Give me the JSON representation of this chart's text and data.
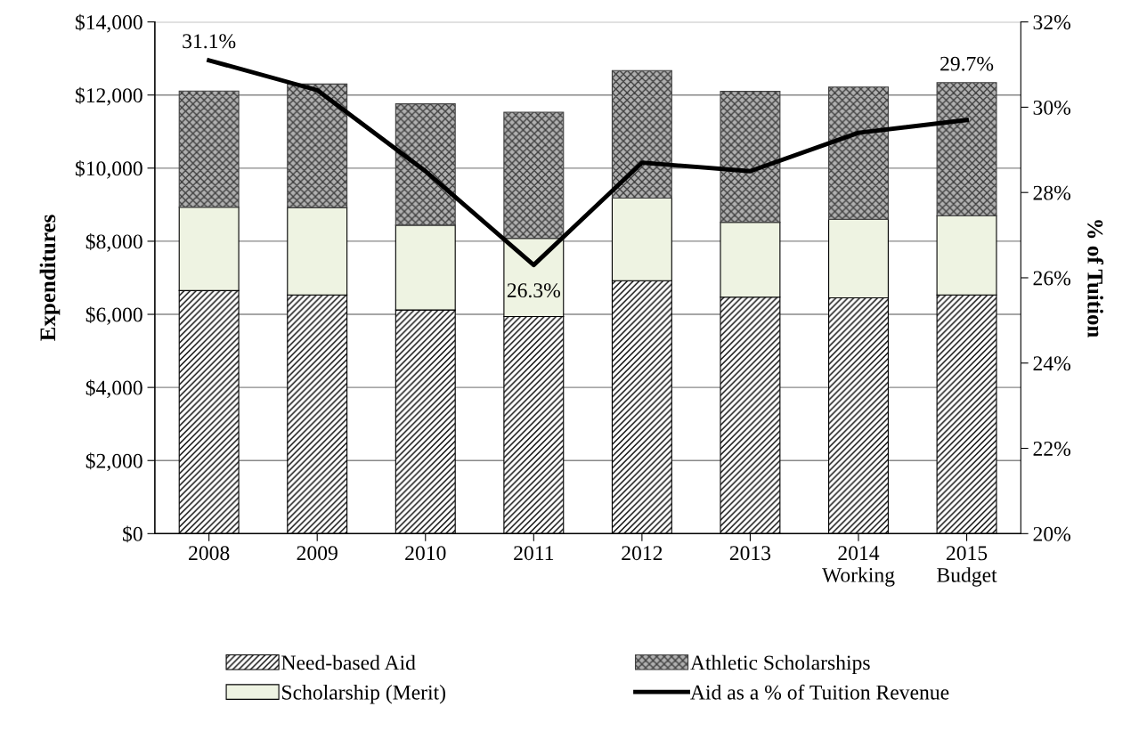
{
  "chart_data": {
    "type": "bar",
    "stacked": true,
    "ylabel": "Expenditures",
    "y2label": "% of Tuition",
    "categories": [
      "2008",
      "2009",
      "2010",
      "2011",
      "2012",
      "2013",
      "2014\nWorking",
      "2015\nBudget"
    ],
    "series": [
      {
        "name": "Need-based Aid",
        "color": "#000000",
        "values": [
          6650,
          6530,
          6120,
          5940,
          6920,
          6470,
          6450,
          6530
        ]
      },
      {
        "name": "Scholarship (Merit)",
        "color": "#eef3e2",
        "values": [
          2280,
          2390,
          2320,
          2140,
          2260,
          2050,
          2150,
          2170
        ]
      },
      {
        "name": "Athletic Scholarships",
        "color": "#404040",
        "values": [
          3180,
          3380,
          3320,
          3450,
          3490,
          3580,
          3620,
          3640
        ]
      },
      {
        "name": "Aid as a % of Tuition Revenue",
        "type": "line",
        "axis": "y2",
        "color": "#000000",
        "values": [
          31.1,
          30.4,
          28.5,
          26.3,
          28.7,
          28.5,
          29.4,
          29.7
        ],
        "value_labels": [
          "31.1%",
          null,
          null,
          "26.3%",
          null,
          null,
          null,
          "29.7%"
        ]
      }
    ],
    "ylim": [
      0,
      14000
    ],
    "yticks": [
      {
        "value": 0,
        "label": "$0"
      },
      {
        "value": 2000,
        "label": "$2,000"
      },
      {
        "value": 4000,
        "label": "$4,000"
      },
      {
        "value": 6000,
        "label": "$6,000"
      },
      {
        "value": 8000,
        "label": "$8,000"
      },
      {
        "value": 10000,
        "label": "$10,000"
      },
      {
        "value": 12000,
        "label": "$12,000"
      },
      {
        "value": 14000,
        "label": "$14,000"
      }
    ],
    "y2lim": [
      20,
      32
    ],
    "y2ticks": [
      {
        "value": 20,
        "label": "20%"
      },
      {
        "value": 22,
        "label": "22%"
      },
      {
        "value": 24,
        "label": "24%"
      },
      {
        "value": 26,
        "label": "26%"
      },
      {
        "value": 28,
        "label": "28%"
      },
      {
        "value": 30,
        "label": "30%"
      },
      {
        "value": 32,
        "label": "32%"
      }
    ],
    "grid": "y",
    "legend": "bottom",
    "marker": "none",
    "line_style": "solid"
  }
}
